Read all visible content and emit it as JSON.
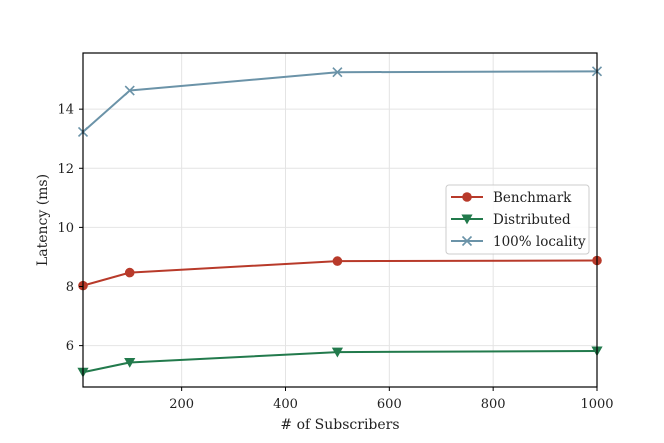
{
  "chart_data": {
    "type": "line",
    "xlabel": "# of Subscribers",
    "ylabel": "Latency (ms)",
    "xlim": [
      10,
      1000
    ],
    "ylim": [
      4.6,
      15.9
    ],
    "xticks": [
      200,
      400,
      600,
      800,
      1000
    ],
    "yticks": [
      6,
      8,
      10,
      12,
      14
    ],
    "grid": true,
    "legend_position": "center-right",
    "series": [
      {
        "name": "Benchmark",
        "color": "#b83a2a",
        "marker": "circle",
        "x": [
          10,
          100,
          500,
          1000
        ],
        "y": [
          8.03,
          8.47,
          8.86,
          8.88
        ]
      },
      {
        "name": "Distributed",
        "color": "#227a4c",
        "marker": "triangle-down",
        "x": [
          10,
          100,
          500,
          1000
        ],
        "y": [
          5.1,
          5.43,
          5.78,
          5.82
        ]
      },
      {
        "name": "100% locality",
        "color": "#6b93a8",
        "marker": "x",
        "x": [
          10,
          100,
          500,
          1000
        ],
        "y": [
          13.23,
          14.63,
          15.25,
          15.28
        ]
      }
    ]
  }
}
